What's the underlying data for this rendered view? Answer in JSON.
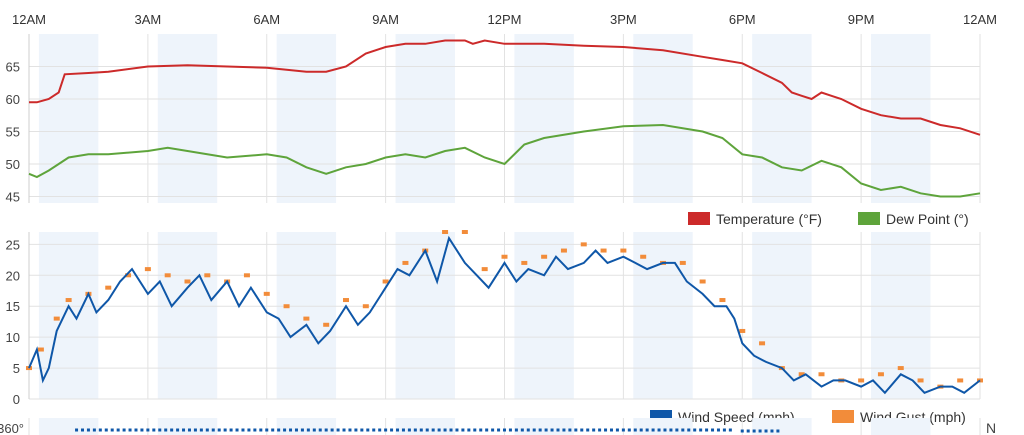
{
  "time_axis": {
    "labels": [
      "12AM",
      "3AM",
      "6AM",
      "9AM",
      "12PM",
      "3PM",
      "6PM",
      "9PM",
      "12AM"
    ],
    "hours": [
      0,
      3,
      6,
      9,
      12,
      15,
      18,
      21,
      24
    ]
  },
  "colors": {
    "temperature": "#cc2a2a",
    "dew_point": "#5ea43b",
    "wind_speed": "#0f57a8",
    "wind_gust": "#f28c3a",
    "band": "#eef4fb",
    "grid": "#e2e2e2"
  },
  "legends": {
    "temperature": "Temperature (°F)",
    "dew_point": "Dew Point (°)",
    "wind_speed": "Wind Speed (mph)",
    "wind_gust": "Wind Gust (mph)"
  },
  "direction_panel": {
    "tick_label": "360°",
    "right_label": "N",
    "markers": [
      {
        "hours": [
          1.2,
          17.8
        ],
        "value": 360
      },
      {
        "hours": [
          18.0,
          19.0
        ],
        "value": 355
      }
    ]
  },
  "chart_data": [
    {
      "type": "line",
      "name": "temperature-dewpoint",
      "x_unit": "hour of day",
      "xlim": [
        0,
        24
      ],
      "ylim": [
        44,
        70
      ],
      "yticks": [
        45,
        50,
        55,
        60,
        65
      ],
      "grid": true,
      "legend_position": "bottom-right",
      "series": [
        {
          "name": "Temperature (°F)",
          "color": "#cc2a2a",
          "x": [
            0,
            0.2,
            0.5,
            0.75,
            0.9,
            1.5,
            2,
            3,
            4,
            5,
            6,
            7,
            7.5,
            8,
            8.5,
            9,
            9.5,
            10,
            10.5,
            11,
            11.2,
            11.5,
            12,
            13,
            14,
            15,
            16,
            17,
            17.5,
            18,
            18.5,
            19,
            19.25,
            19.5,
            19.75,
            20,
            20.25,
            20.5,
            21,
            21.5,
            22,
            22.5,
            23,
            23.5,
            24
          ],
          "y": [
            59.5,
            59.5,
            60,
            61,
            63.8,
            64,
            64.2,
            65,
            65.2,
            65,
            64.8,
            64.2,
            64.2,
            65,
            67,
            68,
            68.5,
            68.5,
            69,
            69,
            68.5,
            69,
            68.5,
            68.5,
            68.2,
            68,
            67.5,
            66.5,
            66,
            65.5,
            64,
            62.5,
            61,
            60.5,
            60,
            61,
            60.5,
            60,
            58.5,
            57.5,
            57,
            57,
            56,
            55.5,
            54.5
          ]
        },
        {
          "name": "Dew Point (°)",
          "color": "#5ea43b",
          "x": [
            0,
            0.2,
            0.5,
            0.75,
            1,
            1.5,
            2,
            3,
            3.5,
            4,
            5,
            6,
            6.5,
            7,
            7.5,
            8,
            8.5,
            9,
            9.5,
            10,
            10.5,
            11,
            11.5,
            12,
            12.5,
            13,
            14,
            15,
            16,
            17,
            17.5,
            18,
            18.5,
            19,
            19.5,
            20,
            20.5,
            21,
            21.5,
            22,
            22.5,
            23,
            23.5,
            24
          ],
          "y": [
            48.5,
            48,
            49,
            50,
            51,
            51.5,
            51.5,
            52,
            52.5,
            52,
            51,
            51.5,
            51,
            49.5,
            48.5,
            49.5,
            50,
            51,
            51.5,
            51,
            52,
            52.5,
            51,
            50,
            53,
            54,
            55,
            55.8,
            56,
            55,
            54,
            51.5,
            51,
            49.5,
            49,
            50.5,
            49.5,
            47,
            46,
            46.5,
            45.5,
            45,
            45,
            45.5
          ]
        }
      ]
    },
    {
      "type": "line",
      "name": "wind",
      "x_unit": "hour of day",
      "xlim": [
        0,
        24
      ],
      "ylim": [
        0,
        27
      ],
      "yticks": [
        0,
        5,
        10,
        15,
        20,
        25
      ],
      "grid": true,
      "legend_position": "bottom-right",
      "series": [
        {
          "name": "Wind Speed (mph)",
          "color": "#0f57a8",
          "x": [
            0,
            0.2,
            0.35,
            0.5,
            0.7,
            1,
            1.2,
            1.5,
            1.7,
            2,
            2.3,
            2.6,
            3,
            3.3,
            3.6,
            4,
            4.3,
            4.6,
            5,
            5.3,
            5.6,
            6,
            6.3,
            6.6,
            7,
            7.3,
            7.6,
            8,
            8.3,
            8.6,
            9,
            9.3,
            9.6,
            10,
            10.3,
            10.6,
            11,
            11.3,
            11.6,
            12,
            12.3,
            12.6,
            13,
            13.3,
            13.6,
            14,
            14.3,
            14.6,
            15,
            15.3,
            15.6,
            16,
            16.3,
            16.6,
            17,
            17.3,
            17.6,
            17.8,
            18,
            18.3,
            18.6,
            19,
            19.3,
            19.6,
            20,
            20.3,
            20.6,
            21,
            21.3,
            21.6,
            22,
            22.3,
            22.6,
            23,
            23.3,
            23.6,
            24
          ],
          "y": [
            5,
            8,
            3,
            5,
            11,
            15,
            13,
            17,
            14,
            16,
            19,
            21,
            17,
            19,
            15,
            18,
            20,
            16,
            19,
            15,
            18,
            14,
            13,
            10,
            12,
            9,
            11,
            15,
            12,
            14,
            18,
            21,
            20,
            24,
            19,
            26,
            22,
            20,
            18,
            22,
            19,
            21,
            20,
            23,
            21,
            22,
            24,
            22,
            23,
            22,
            21,
            22,
            22,
            19,
            17,
            15,
            15,
            13,
            9,
            7,
            6,
            5,
            3,
            4,
            2,
            3,
            3,
            2,
            3,
            1,
            4,
            3,
            1,
            2,
            2,
            1,
            3
          ]
        },
        {
          "name": "Wind Gust (mph)",
          "color": "#f28c3a",
          "x": [
            0,
            0.3,
            0.7,
            1,
            1.5,
            2,
            2.5,
            3,
            3.5,
            4,
            4.5,
            5,
            5.5,
            6,
            6.5,
            7,
            7.5,
            8,
            8.5,
            9,
            9.5,
            10,
            10.5,
            11,
            11.5,
            12,
            12.5,
            13,
            13.5,
            14,
            14.5,
            15,
            15.5,
            16,
            16.5,
            17,
            17.5,
            18,
            18.5,
            19,
            19.5,
            20,
            20.5,
            21,
            21.5,
            22,
            22.5,
            23,
            23.5,
            24
          ],
          "y": [
            5,
            8,
            13,
            16,
            17,
            18,
            20,
            21,
            20,
            19,
            20,
            19,
            20,
            17,
            15,
            13,
            12,
            16,
            15,
            19,
            22,
            24,
            27,
            27,
            21,
            23,
            22,
            23,
            24,
            25,
            24,
            24,
            23,
            22,
            22,
            19,
            16,
            11,
            9,
            5,
            4,
            4,
            3,
            3,
            4,
            5,
            3,
            2,
            3,
            3
          ]
        }
      ]
    }
  ]
}
